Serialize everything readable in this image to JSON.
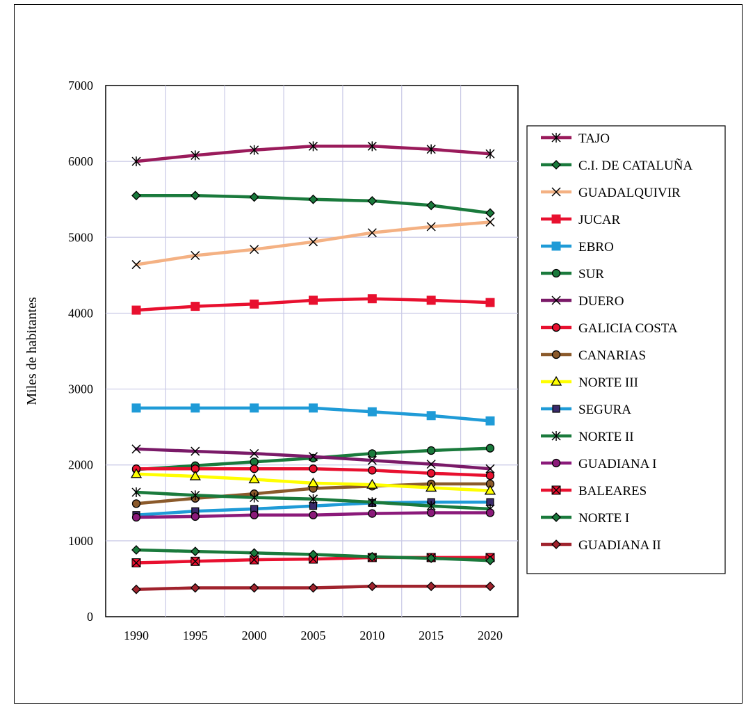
{
  "chart_data": {
    "type": "line",
    "title": "",
    "xlabel": "",
    "ylabel": "Miles de habitantes",
    "x": [
      1990,
      1995,
      2000,
      2005,
      2010,
      2015,
      2020
    ],
    "x_tick_labels": [
      "1990",
      "1995",
      "2000",
      "2005",
      "2010",
      "2015",
      "2020"
    ],
    "ylim": [
      0,
      7000
    ],
    "y_ticks": [
      0,
      1000,
      2000,
      3000,
      4000,
      5000,
      6000,
      7000
    ],
    "y_tick_labels": [
      "0",
      "1000",
      "2000",
      "3000",
      "4000",
      "5000",
      "6000",
      "7000"
    ],
    "grid": true,
    "legend_position": "right",
    "series": [
      {
        "name": "TAJO",
        "color": "#9a1b5b",
        "marker": "asterisk",
        "values": [
          6000,
          6080,
          6150,
          6200,
          6200,
          6160,
          6100
        ]
      },
      {
        "name": "C.I. DE CATALUÑA",
        "color": "#1a7a3c",
        "marker": "diamond",
        "values": [
          5550,
          5550,
          5530,
          5500,
          5480,
          5420,
          5320
        ]
      },
      {
        "name": "GUADALQUIVIR",
        "color": "#f4b183",
        "marker": "x",
        "values": [
          4640,
          4760,
          4840,
          4940,
          5060,
          5140,
          5200
        ]
      },
      {
        "name": "JUCAR",
        "color": "#e8102f",
        "marker": "square",
        "values": [
          4040,
          4090,
          4120,
          4170,
          4190,
          4170,
          4140
        ]
      },
      {
        "name": "EBRO",
        "color": "#1f9bd7",
        "marker": "square",
        "values": [
          2750,
          2750,
          2750,
          2750,
          2700,
          2650,
          2580
        ]
      },
      {
        "name": "SUR",
        "color": "#1a7a3c",
        "marker": "circle",
        "values": [
          1940,
          1990,
          2040,
          2090,
          2150,
          2190,
          2220
        ]
      },
      {
        "name": "DUERO",
        "color": "#7a1a68",
        "marker": "x",
        "values": [
          2210,
          2180,
          2150,
          2110,
          2060,
          2010,
          1950
        ]
      },
      {
        "name": "GALICIA COSTA",
        "color": "#e8102f",
        "marker": "circle",
        "values": [
          1950,
          1950,
          1950,
          1950,
          1930,
          1890,
          1860
        ]
      },
      {
        "name": "CANARIAS",
        "color": "#8b5a2b",
        "marker": "circle",
        "values": [
          1490,
          1560,
          1620,
          1690,
          1720,
          1750,
          1750
        ]
      },
      {
        "name": "NORTE III",
        "color": "#ffff00",
        "marker": "triangle",
        "values": [
          1880,
          1850,
          1810,
          1760,
          1740,
          1700,
          1660
        ]
      },
      {
        "name": "SEGURA",
        "color": "#1f9bd7",
        "marker": "square-dark",
        "values": [
          1340,
          1390,
          1420,
          1460,
          1500,
          1510,
          1510
        ]
      },
      {
        "name": "NORTE II",
        "color": "#1a7a3c",
        "marker": "asterisk",
        "values": [
          1640,
          1600,
          1570,
          1550,
          1510,
          1460,
          1420
        ]
      },
      {
        "name": "GUADIANA I",
        "color": "#8b1a7a",
        "marker": "circle",
        "values": [
          1310,
          1320,
          1340,
          1340,
          1360,
          1370,
          1370
        ]
      },
      {
        "name": "BALEARES",
        "color": "#e8102f",
        "marker": "square-x",
        "values": [
          710,
          730,
          750,
          760,
          780,
          780,
          780
        ]
      },
      {
        "name": "NORTE I",
        "color": "#1a7a3c",
        "marker": "diamond",
        "values": [
          880,
          860,
          840,
          820,
          790,
          770,
          740
        ]
      },
      {
        "name": "GUADIANA II",
        "color": "#a0232d",
        "marker": "diamond",
        "values": [
          360,
          380,
          380,
          380,
          400,
          400,
          400
        ]
      }
    ]
  }
}
